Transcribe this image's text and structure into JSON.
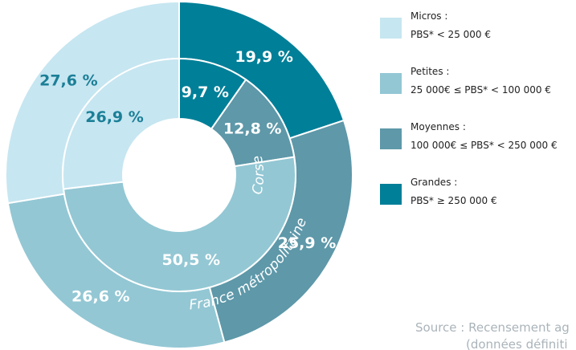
{
  "chart_data": {
    "type": "nested-donut",
    "categories": [
      "Micros :",
      "Petites :",
      "Moyennes :",
      "Grandes :"
    ],
    "category_descriptions": [
      "PBS* < 25 000 €",
      "25 000€ ≤ PBS* < 100 000 €",
      "100 000€ ≤ PBS* < 250 000 €",
      "PBS* ≥ 250 000 €"
    ],
    "colors": [
      "#c6e6f1",
      "#93c7d4",
      "#5e98a9",
      "#007f98"
    ],
    "series": [
      {
        "name": "France métropolitaine",
        "values": [
          27.6,
          26.6,
          25.9,
          19.9
        ],
        "value_labels": [
          "27,6 %",
          "26,6 %",
          "25,9 %",
          "19,9 %"
        ]
      },
      {
        "name": "Corse",
        "values": [
          26.9,
          50.5,
          12.8,
          9.7
        ],
        "value_labels": [
          "26,9 %",
          "50,5 %",
          "12,8 %",
          "9,7 %"
        ]
      }
    ],
    "source": [
      "Source : Recensement ag",
      "(données définiti"
    ]
  }
}
